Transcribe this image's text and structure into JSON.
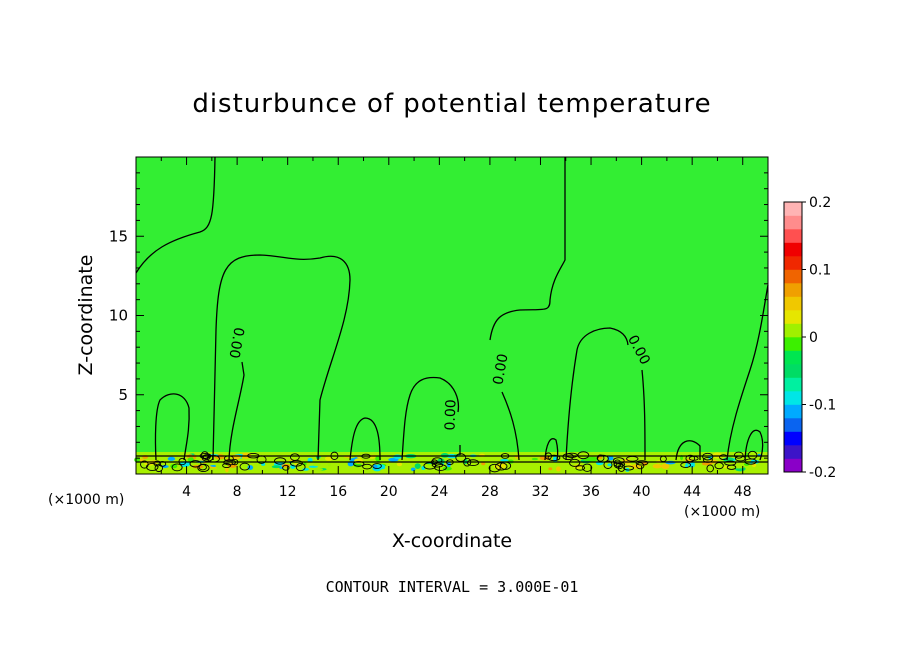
{
  "chart_data": {
    "type": "contour",
    "title": "disturbunce of potential temperature",
    "xlabel": "X-coordinate",
    "ylabel": "Z-coordinate",
    "x_units_left": "(×1000 m)",
    "x_units_right": "(×1000 m)",
    "xlim": [
      0,
      50
    ],
    "ylim": [
      0,
      20
    ],
    "x_ticks": [
      4,
      8,
      12,
      16,
      20,
      24,
      28,
      32,
      36,
      40,
      44,
      48
    ],
    "y_ticks": [
      5,
      10,
      15
    ],
    "contour_label": "0.00",
    "contour_interval_text": "CONTOUR INTERVAL = 3.000E-01",
    "colorbar": {
      "ticks": [
        "0.2",
        "0.1",
        "0",
        "-0.1",
        "-0.2"
      ],
      "range": [
        -0.2,
        0.2
      ],
      "colors": [
        "#8a00c8",
        "#3c14c8",
        "#0000ff",
        "#0a64f0",
        "#00aaff",
        "#00e6e6",
        "#00f0a0",
        "#00dc64",
        "#00e650",
        "#3cf000",
        "#a0f000",
        "#e6e600",
        "#f0c800",
        "#f0a000",
        "#f06400",
        "#f02800",
        "#f00000",
        "#ff5050",
        "#ff8c8c",
        "#ffb4b4"
      ]
    },
    "background_color": "#33ee33",
    "line_color": "#000000"
  }
}
